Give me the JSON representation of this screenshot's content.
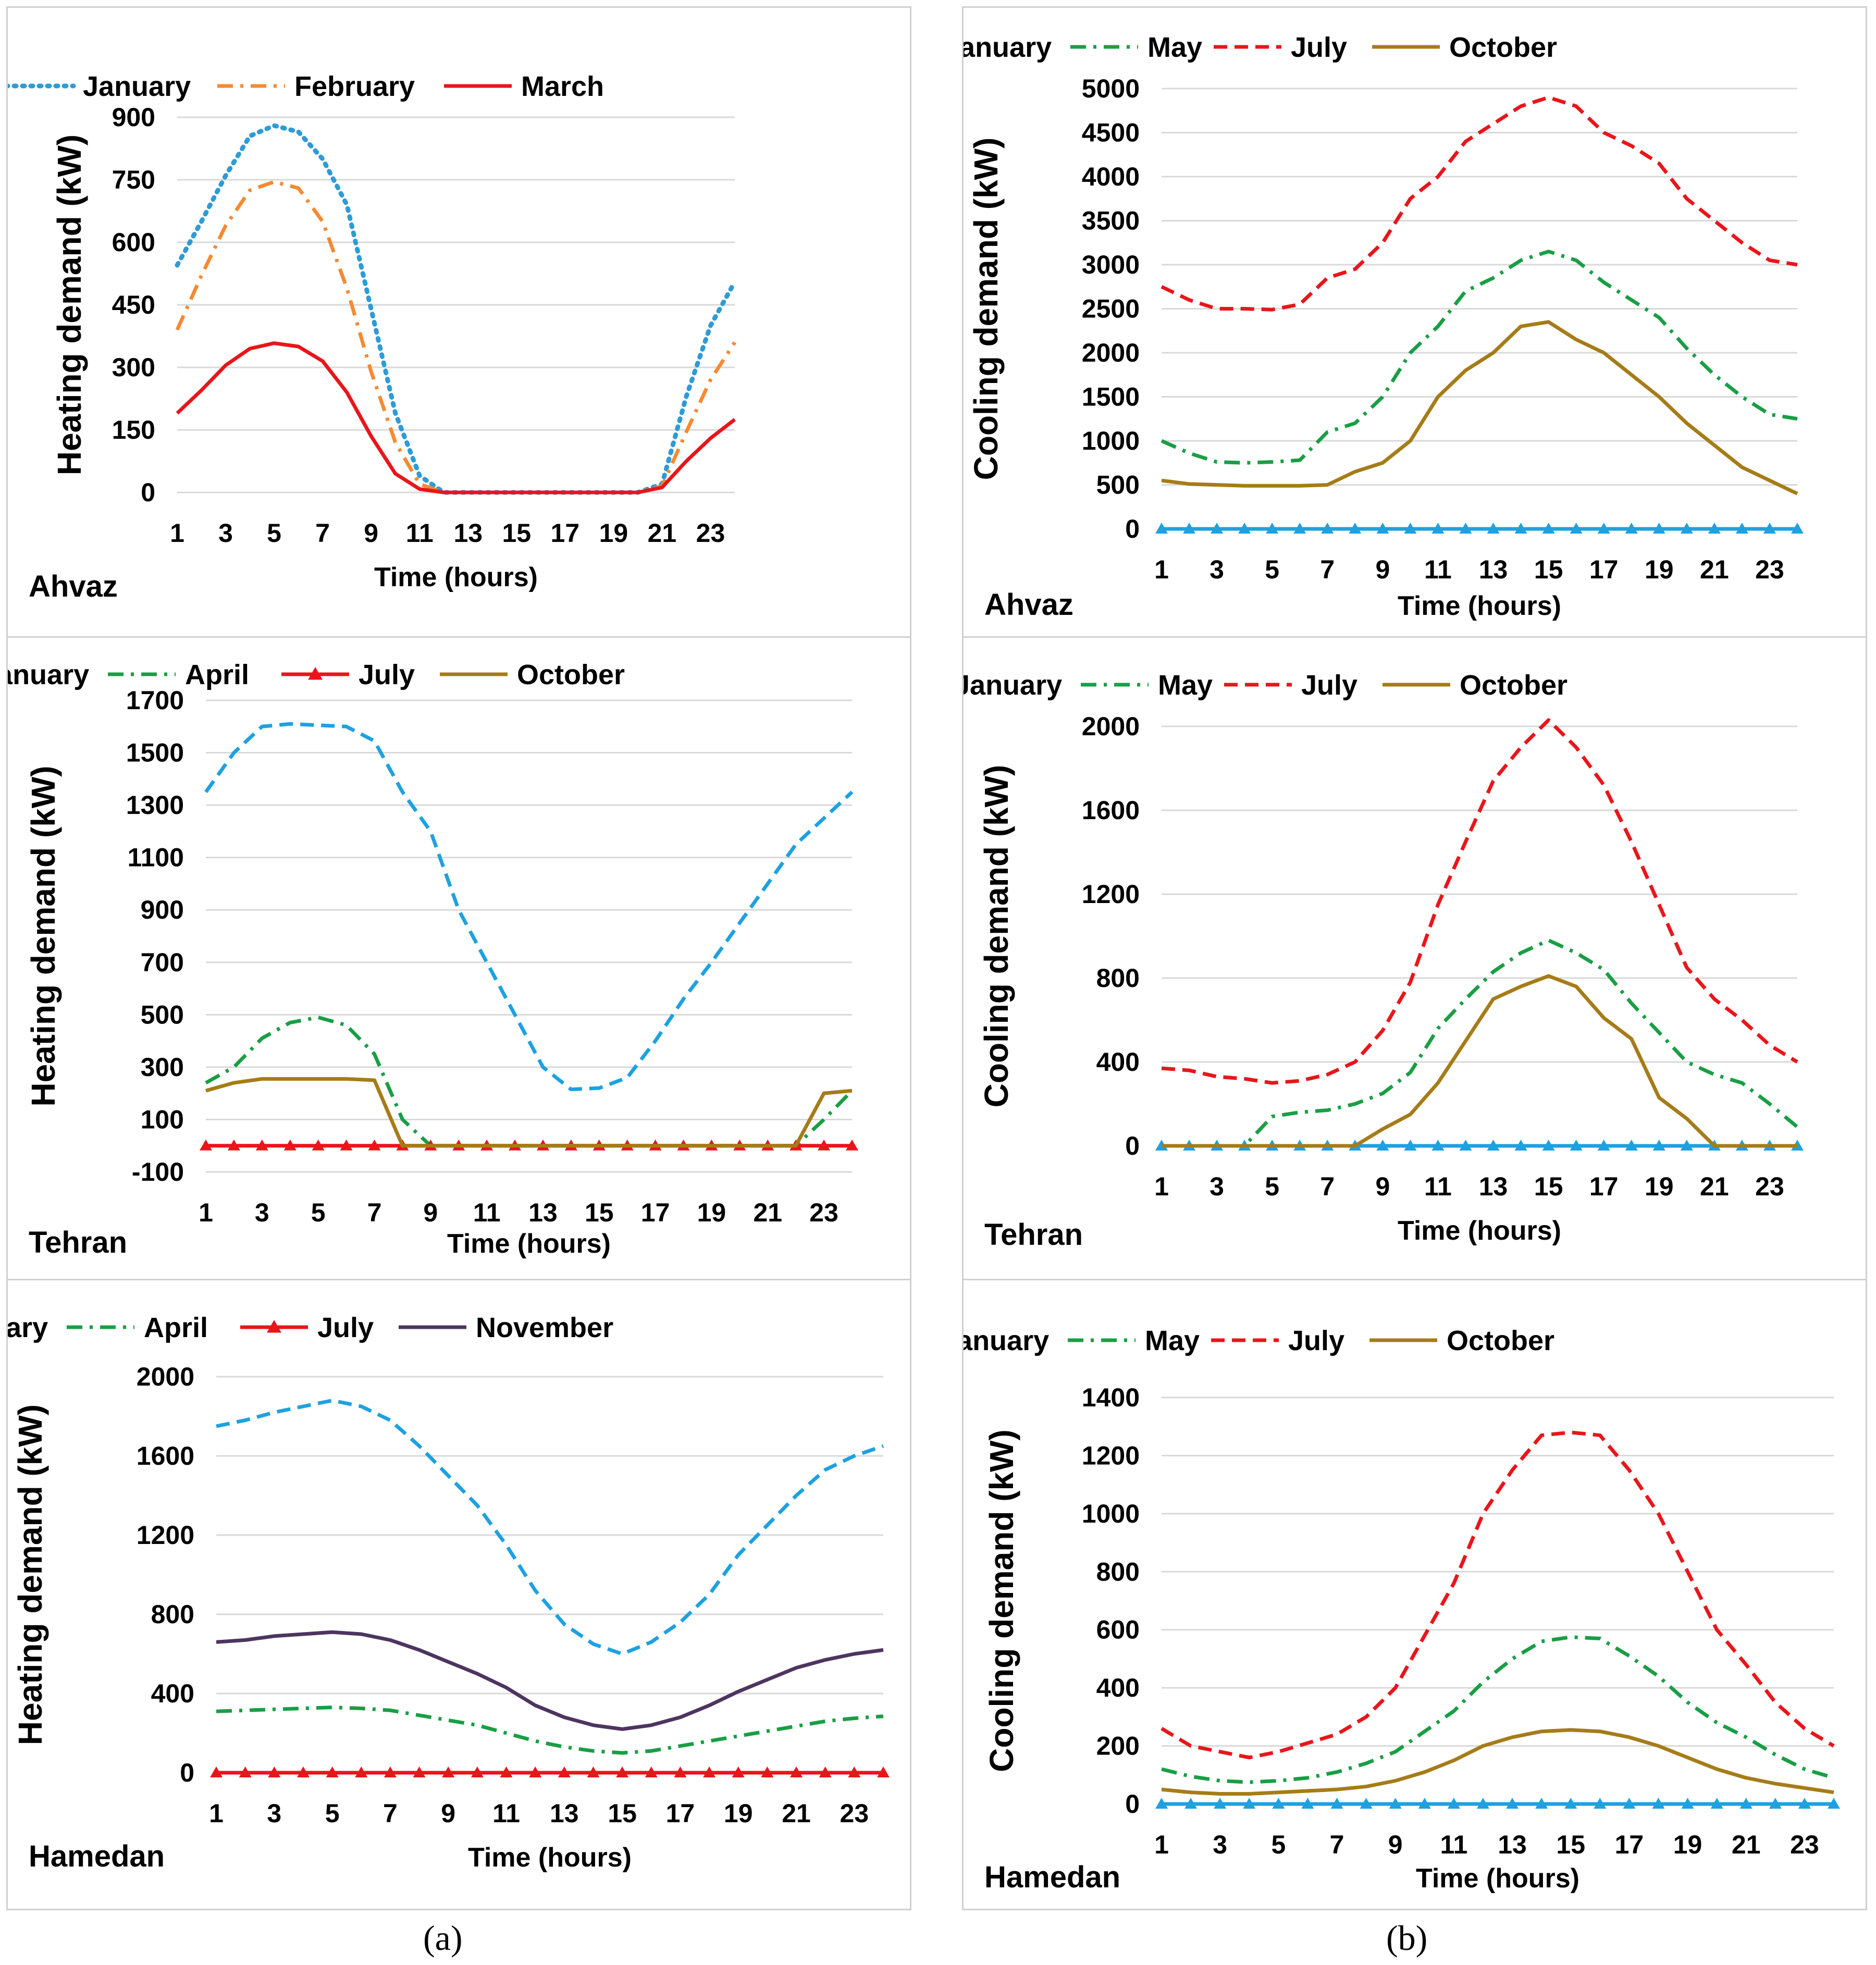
{
  "figure": {
    "caption_a": "(a)",
    "caption_b": "(b)"
  },
  "chart_data": [
    {
      "id": "a1",
      "type": "line",
      "city": "Ahvaz",
      "ylabel": "Heating demand (kW)",
      "xlabel": "Time (hours)",
      "ylim": [
        0,
        900
      ],
      "yticks": [
        0,
        150,
        300,
        450,
        600,
        750,
        900
      ],
      "xlim": [
        1,
        24
      ],
      "xticks": [
        1,
        3,
        5,
        7,
        9,
        11,
        13,
        15,
        17,
        19,
        21,
        23
      ],
      "x": [
        1,
        2,
        3,
        4,
        5,
        6,
        7,
        8,
        9,
        10,
        11,
        12,
        13,
        14,
        15,
        16,
        17,
        18,
        19,
        20,
        21,
        22,
        23,
        24
      ],
      "series": [
        {
          "name": "January",
          "color": "#2e9bd6",
          "style": "dotted",
          "marker": "none",
          "values": [
            545,
            650,
            760,
            855,
            880,
            865,
            800,
            690,
            440,
            190,
            40,
            0,
            0,
            0,
            0,
            0,
            0,
            0,
            0,
            0,
            20,
            230,
            400,
            505
          ]
        },
        {
          "name": "February",
          "color": "#f58a32",
          "style": "dashdot",
          "marker": "none",
          "values": [
            390,
            520,
            640,
            725,
            745,
            730,
            650,
            490,
            290,
            120,
            20,
            0,
            0,
            0,
            0,
            0,
            0,
            0,
            0,
            0,
            15,
            145,
            270,
            360
          ]
        },
        {
          "name": "March",
          "color": "#e8161b",
          "style": "solid",
          "marker": "none",
          "values": [
            190,
            245,
            305,
            345,
            358,
            350,
            315,
            240,
            135,
            45,
            8,
            0,
            0,
            0,
            0,
            0,
            0,
            0,
            0,
            0,
            12,
            75,
            130,
            175
          ]
        }
      ]
    },
    {
      "id": "b1",
      "type": "line",
      "city": "Ahvaz",
      "ylabel": "Cooling demand (kW)",
      "xlabel": "Time (hours)",
      "ylim": [
        0,
        5000
      ],
      "yticks": [
        0,
        500,
        1000,
        1500,
        2000,
        2500,
        3000,
        3500,
        4000,
        4500,
        5000
      ],
      "xlim": [
        1,
        24
      ],
      "xticks": [
        1,
        3,
        5,
        7,
        9,
        11,
        13,
        15,
        17,
        19,
        21,
        23
      ],
      "x": [
        1,
        2,
        3,
        4,
        5,
        6,
        7,
        8,
        9,
        10,
        11,
        12,
        13,
        14,
        15,
        16,
        17,
        18,
        19,
        20,
        21,
        22,
        23,
        24
      ],
      "series": [
        {
          "name": "January",
          "color": "#1ea1e0",
          "style": "solid",
          "marker": "triangle",
          "values": [
            0,
            0,
            0,
            0,
            0,
            0,
            0,
            0,
            0,
            0,
            0,
            0,
            0,
            0,
            0,
            0,
            0,
            0,
            0,
            0,
            0,
            0,
            0,
            0
          ]
        },
        {
          "name": "May",
          "color": "#1a9e45",
          "style": "dashdot",
          "marker": "none",
          "values": [
            1000,
            860,
            760,
            750,
            760,
            780,
            1100,
            1200,
            1500,
            2000,
            2300,
            2700,
            2850,
            3050,
            3150,
            3050,
            2800,
            2600,
            2400,
            2050,
            1750,
            1500,
            1300,
            1250
          ]
        },
        {
          "name": "July",
          "color": "#e8161b",
          "style": "dashed",
          "marker": "none",
          "values": [
            2750,
            2600,
            2500,
            2500,
            2490,
            2550,
            2850,
            2950,
            3250,
            3750,
            4000,
            4400,
            4600,
            4800,
            4900,
            4800,
            4500,
            4350,
            4150,
            3750,
            3500,
            3250,
            3050,
            3000
          ]
        },
        {
          "name": "October",
          "color": "#a57c18",
          "style": "solid",
          "marker": "none",
          "values": [
            550,
            510,
            500,
            490,
            490,
            490,
            500,
            650,
            750,
            1000,
            1500,
            1800,
            2000,
            2300,
            2350,
            2150,
            2000,
            1750,
            1500,
            1200,
            950,
            700,
            550,
            400
          ]
        }
      ]
    },
    {
      "id": "a2",
      "type": "line",
      "city": "Tehran",
      "ylabel": "Heating demand (kW)",
      "xlabel": "Time (hours)",
      "ylim": [
        -100,
        1700
      ],
      "yticks": [
        -100,
        100,
        300,
        500,
        700,
        900,
        1100,
        1300,
        1500,
        1700
      ],
      "xlim": [
        1,
        24
      ],
      "xticks": [
        1,
        3,
        5,
        7,
        9,
        11,
        13,
        15,
        17,
        19,
        21,
        23
      ],
      "x": [
        1,
        2,
        3,
        4,
        5,
        6,
        7,
        8,
        9,
        10,
        11,
        12,
        13,
        14,
        15,
        16,
        17,
        18,
        19,
        20,
        21,
        22,
        23,
        24
      ],
      "series": [
        {
          "name": "January",
          "color": "#1ea1e0",
          "style": "dashed",
          "marker": "none",
          "values": [
            1350,
            1500,
            1600,
            1610,
            1605,
            1600,
            1545,
            1350,
            1200,
            900,
            700,
            500,
            300,
            215,
            220,
            260,
            400,
            560,
            700,
            850,
            1000,
            1150,
            1250,
            1350
          ]
        },
        {
          "name": "April",
          "color": "#1a9e45",
          "style": "dashdot",
          "marker": "none",
          "values": [
            240,
            300,
            410,
            470,
            490,
            460,
            350,
            100,
            0,
            0,
            0,
            0,
            0,
            0,
            0,
            0,
            0,
            0,
            0,
            0,
            0,
            0,
            100,
            210
          ]
        },
        {
          "name": "July",
          "color": "#e8161b",
          "style": "solid",
          "marker": "triangle",
          "values": [
            0,
            0,
            0,
            0,
            0,
            0,
            0,
            0,
            0,
            0,
            0,
            0,
            0,
            0,
            0,
            0,
            0,
            0,
            0,
            0,
            0,
            0,
            0,
            0
          ]
        },
        {
          "name": "October",
          "color": "#a57c18",
          "style": "solid",
          "marker": "none",
          "values": [
            210,
            240,
            255,
            255,
            255,
            255,
            250,
            0,
            0,
            0,
            0,
            0,
            0,
            0,
            0,
            0,
            0,
            0,
            0,
            0,
            0,
            0,
            200,
            210
          ]
        }
      ]
    },
    {
      "id": "b2",
      "type": "line",
      "city": "Tehran",
      "ylabel": "Cooling demand (kW)",
      "xlabel": "Time (hours)",
      "ylim": [
        0,
        2000
      ],
      "yticks": [
        0,
        400,
        800,
        1200,
        1600,
        2000
      ],
      "xlim": [
        1,
        24
      ],
      "xticks": [
        1,
        3,
        5,
        7,
        9,
        11,
        13,
        15,
        17,
        19,
        21,
        23
      ],
      "x": [
        1,
        2,
        3,
        4,
        5,
        6,
        7,
        8,
        9,
        10,
        11,
        12,
        13,
        14,
        15,
        16,
        17,
        18,
        19,
        20,
        21,
        22,
        23,
        24
      ],
      "series": [
        {
          "name": "January",
          "color": "#1ea1e0",
          "style": "solid",
          "marker": "triangle",
          "values": [
            0,
            0,
            0,
            0,
            0,
            0,
            0,
            0,
            0,
            0,
            0,
            0,
            0,
            0,
            0,
            0,
            0,
            0,
            0,
            0,
            0,
            0,
            0,
            0
          ]
        },
        {
          "name": "May",
          "color": "#1a9e45",
          "style": "dashdot",
          "marker": "none",
          "values": [
            0,
            0,
            0,
            0,
            140,
            160,
            170,
            200,
            250,
            350,
            560,
            700,
            830,
            920,
            980,
            920,
            840,
            680,
            540,
            400,
            340,
            300,
            200,
            90
          ]
        },
        {
          "name": "July",
          "color": "#e8161b",
          "style": "dashed",
          "marker": "none",
          "values": [
            370,
            360,
            330,
            320,
            300,
            310,
            340,
            400,
            550,
            780,
            1150,
            1450,
            1740,
            1900,
            2030,
            1900,
            1720,
            1450,
            1150,
            850,
            700,
            600,
            480,
            400
          ]
        },
        {
          "name": "October",
          "color": "#a57c18",
          "style": "solid",
          "marker": "none",
          "values": [
            0,
            0,
            0,
            0,
            0,
            0,
            0,
            0,
            80,
            150,
            300,
            500,
            700,
            760,
            810,
            760,
            610,
            510,
            230,
            130,
            0,
            0,
            0,
            0
          ]
        }
      ]
    },
    {
      "id": "a3",
      "type": "line",
      "city": "Hamedan",
      "ylabel": "Heating demand (kW)",
      "xlabel": "Time (hours)",
      "ylim": [
        0,
        2000
      ],
      "yticks": [
        0,
        400,
        800,
        1200,
        1600,
        2000
      ],
      "xlim": [
        1,
        24
      ],
      "xticks": [
        1,
        3,
        5,
        7,
        9,
        11,
        13,
        15,
        17,
        19,
        21,
        23
      ],
      "x": [
        1,
        2,
        3,
        4,
        5,
        6,
        7,
        8,
        9,
        10,
        11,
        12,
        13,
        14,
        15,
        16,
        17,
        18,
        19,
        20,
        21,
        22,
        23,
        24
      ],
      "series": [
        {
          "name": "January",
          "color": "#1ea1e0",
          "style": "dashed",
          "marker": "none",
          "values": [
            1750,
            1780,
            1820,
            1850,
            1880,
            1850,
            1780,
            1650,
            1500,
            1350,
            1150,
            920,
            750,
            650,
            600,
            660,
            760,
            900,
            1100,
            1250,
            1400,
            1530,
            1600,
            1650
          ]
        },
        {
          "name": "April",
          "color": "#1a9e45",
          "style": "dashdot",
          "marker": "none",
          "values": [
            310,
            315,
            320,
            325,
            330,
            325,
            315,
            290,
            265,
            240,
            200,
            160,
            130,
            110,
            100,
            110,
            135,
            160,
            185,
            210,
            235,
            260,
            275,
            285
          ]
        },
        {
          "name": "July",
          "color": "#e8161b",
          "style": "solid",
          "marker": "triangle",
          "values": [
            0,
            0,
            0,
            0,
            0,
            0,
            0,
            0,
            0,
            0,
            0,
            0,
            0,
            0,
            0,
            0,
            0,
            0,
            0,
            0,
            0,
            0,
            0,
            0
          ]
        },
        {
          "name": "November",
          "color": "#4d3560",
          "style": "solid",
          "marker": "none",
          "values": [
            660,
            670,
            690,
            700,
            710,
            700,
            670,
            620,
            560,
            500,
            430,
            340,
            280,
            240,
            220,
            240,
            280,
            340,
            410,
            470,
            530,
            570,
            600,
            620
          ]
        }
      ]
    },
    {
      "id": "b3",
      "type": "line",
      "city": "Hamedan",
      "ylabel": "Cooling demand (kW)",
      "xlabel": "Time (hours)",
      "ylim": [
        0,
        1400
      ],
      "yticks": [
        0,
        200,
        400,
        600,
        800,
        1000,
        1200,
        1400
      ],
      "xlim": [
        1,
        24
      ],
      "xticks": [
        1,
        3,
        5,
        7,
        9,
        11,
        13,
        15,
        17,
        19,
        21,
        23
      ],
      "x": [
        1,
        2,
        3,
        4,
        5,
        6,
        7,
        8,
        9,
        10,
        11,
        12,
        13,
        14,
        15,
        16,
        17,
        18,
        19,
        20,
        21,
        22,
        23,
        24
      ],
      "series": [
        {
          "name": "January",
          "color": "#1ea1e0",
          "style": "solid",
          "marker": "triangle",
          "values": [
            0,
            0,
            0,
            0,
            0,
            0,
            0,
            0,
            0,
            0,
            0,
            0,
            0,
            0,
            0,
            0,
            0,
            0,
            0,
            0,
            0,
            0,
            0,
            0
          ]
        },
        {
          "name": "May",
          "color": "#1a9e45",
          "style": "dashdot",
          "marker": "none",
          "values": [
            120,
            95,
            80,
            75,
            80,
            90,
            110,
            140,
            180,
            250,
            320,
            420,
            500,
            560,
            575,
            570,
            510,
            440,
            350,
            280,
            230,
            170,
            120,
            90
          ]
        },
        {
          "name": "July",
          "color": "#e8161b",
          "style": "dashed",
          "marker": "none",
          "values": [
            260,
            200,
            180,
            160,
            180,
            210,
            240,
            300,
            400,
            580,
            760,
            1000,
            1150,
            1270,
            1280,
            1270,
            1150,
            1000,
            800,
            600,
            480,
            350,
            260,
            200
          ]
        },
        {
          "name": "October",
          "color": "#a57c18",
          "style": "solid",
          "marker": "none",
          "values": [
            50,
            40,
            35,
            35,
            40,
            45,
            50,
            60,
            80,
            110,
            150,
            200,
            230,
            250,
            255,
            250,
            230,
            200,
            160,
            120,
            90,
            70,
            55,
            40
          ]
        }
      ]
    }
  ]
}
